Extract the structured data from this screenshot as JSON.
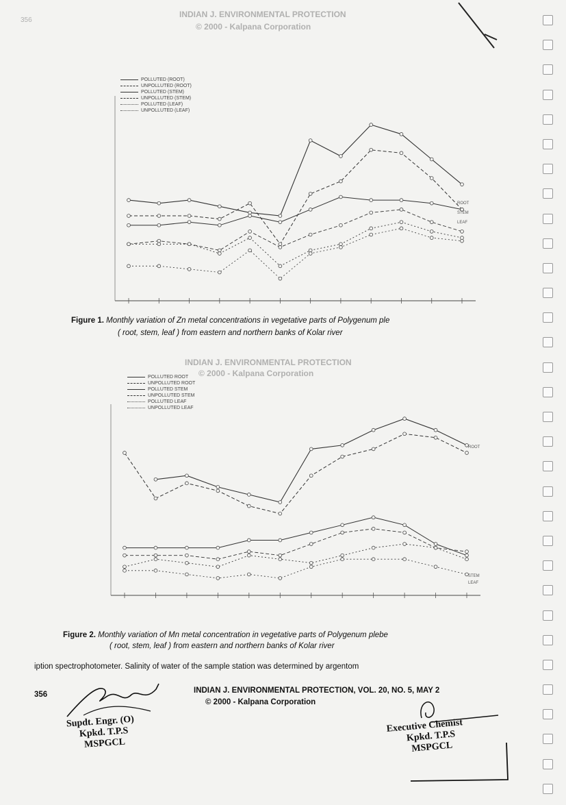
{
  "header": {
    "journal_line": "INDIAN J. ENVIRONMENTAL PROTECTION",
    "copyright_line": "© 2000 - Kalpana Corporation",
    "page_num_ghost": "356"
  },
  "figure1": {
    "legend": [
      "POLLUTED (ROOT)",
      "UNPOLLUTED (ROOT)",
      "POLLUTED (STEM)",
      "UNPOLLUTED (STEM)",
      "POLLUTED (LEAF)",
      "UNPOLLUTED (LEAF)"
    ],
    "caption_label": "Figure 1.",
    "caption_line1": "Monthly  variation of Zn  metal concentrations  in vegetative parts of Polygenum ple",
    "caption_line2": "( root, stem, leaf ) from eastern and northern banks of Kolar river",
    "right_labels": [
      "ROOT",
      "STEM",
      "LEAF"
    ]
  },
  "figure2": {
    "legend": [
      "POLLUTED ROOT",
      "UNPOLLUTED ROOT",
      "POLLUTED STEM",
      "UNPOLLUTED STEM",
      "POLLUTED LEAF",
      "UNPOLLUTED LEAF"
    ],
    "caption_label": "Figure 2.",
    "caption_line1": "Monthly variation  of  Mn  metal concentration  in vegetative  parts of Polygenum  plebe",
    "caption_line2": "( root, stem, leaf )  from eastern and northern banks of Kolar river",
    "right_labels": [
      "ROOT",
      "STEM",
      "LEAF"
    ]
  },
  "body_text": "iption  spectrophotometer.  Salinity  of  water of the      sample  station  was  determined  by  argentom",
  "footer": {
    "page_number": "356",
    "journal": "INDIAN J. ENVIRONMENTAL PROTECTION, VOL. 20, NO. 5, MAY 2",
    "copyright": "© 2000 - Kalpana Corporation"
  },
  "stamps": {
    "left": [
      "Supdt. Engr. (O)",
      "Kpkd. T.P.S",
      "MSPGCL"
    ],
    "right": [
      "Executive Chemist",
      "Kpkd. T.P.S",
      "MSPGCL"
    ]
  },
  "chart_data": [
    {
      "type": "line",
      "series": [
        {
          "name": "POLLUTED (ROOT)",
          "values": [
            2.9,
            2.8,
            2.9,
            2.7,
            2.5,
            2.4,
            4.8,
            4.3,
            5.3,
            5.0,
            4.2,
            3.4
          ]
        },
        {
          "name": "UNPOLLUTED (ROOT)",
          "values": [
            2.4,
            2.4,
            2.4,
            2.3,
            2.8,
            1.5,
            3.1,
            3.5,
            4.5,
            4.4,
            3.6,
            2.6
          ]
        },
        {
          "name": "POLLUTED (STEM)",
          "values": [
            2.1,
            2.1,
            2.2,
            2.1,
            2.4,
            2.2,
            2.6,
            3.0,
            2.9,
            2.9,
            2.8,
            2.6
          ]
        },
        {
          "name": "UNPOLLUTED (STEM)",
          "values": [
            1.5,
            1.6,
            1.5,
            1.3,
            1.9,
            1.4,
            1.8,
            2.1,
            2.5,
            2.6,
            2.2,
            1.9
          ]
        },
        {
          "name": "POLLUTED (LEAF)",
          "values": [
            1.5,
            1.5,
            1.5,
            1.2,
            1.7,
            0.8,
            1.3,
            1.5,
            2.0,
            2.2,
            1.9,
            1.7
          ]
        },
        {
          "name": "UNPOLLUTED (LEAF)",
          "values": [
            0.8,
            0.8,
            0.7,
            0.6,
            1.3,
            0.4,
            1.2,
            1.4,
            1.8,
            2.0,
            1.7,
            1.6
          ]
        }
      ]
    },
    {
      "type": "line",
      "series": [
        {
          "name": "POLLUTED ROOT",
          "values": [
            null,
            5.2,
            5.3,
            5.0,
            4.8,
            4.6,
            6.0,
            6.1,
            6.5,
            6.8,
            6.5,
            6.1
          ]
        },
        {
          "name": "UNPOLLUTED ROOT",
          "values": [
            5.9,
            4.7,
            5.1,
            4.9,
            4.5,
            4.3,
            5.3,
            5.8,
            6.0,
            6.4,
            6.3,
            5.9
          ]
        },
        {
          "name": "POLLUTED STEM",
          "values": [
            3.4,
            3.4,
            3.4,
            3.4,
            3.6,
            3.6,
            3.8,
            4.0,
            4.2,
            4.0,
            3.5,
            3.2
          ]
        },
        {
          "name": "UNPOLLUTED STEM",
          "values": [
            3.2,
            3.2,
            3.2,
            3.1,
            3.3,
            3.2,
            3.5,
            3.8,
            3.9,
            3.8,
            3.4,
            3.3
          ]
        },
        {
          "name": "POLLUTED LEAF",
          "values": [
            2.9,
            3.1,
            3.0,
            2.9,
            3.2,
            3.1,
            3.0,
            3.2,
            3.4,
            3.5,
            3.4,
            3.1
          ]
        },
        {
          "name": "UNPOLLUTED LEAF",
          "values": [
            2.8,
            2.8,
            2.7,
            2.6,
            2.7,
            2.6,
            2.9,
            3.1,
            3.1,
            3.1,
            2.9,
            2.7
          ]
        }
      ]
    }
  ]
}
